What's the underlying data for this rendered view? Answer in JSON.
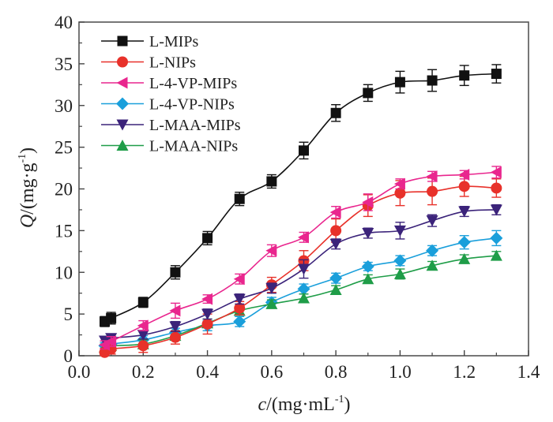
{
  "chart_data": {
    "type": "line",
    "title": "",
    "xlabel_italic": "c",
    "xlabel_rest": "/(mg·mL",
    "xlabel_sup": "-1",
    "xlabel_close": ")",
    "ylabel_italic": "Q",
    "ylabel_rest": "/(mg·g",
    "ylabel_sup": "-1",
    "ylabel_close": ")",
    "xlim": [
      0.0,
      1.4
    ],
    "ylim": [
      0,
      40
    ],
    "xticks": [
      "0.0",
      "0.2",
      "0.4",
      "0.6",
      "0.8",
      "1.0",
      "1.2",
      "1.4"
    ],
    "xtick_values": [
      0.0,
      0.2,
      0.4,
      0.6,
      0.8,
      1.0,
      1.2,
      1.4
    ],
    "yticks": [
      "0",
      "5",
      "10",
      "15",
      "20",
      "25",
      "30",
      "35",
      "40"
    ],
    "ytick_values": [
      0,
      5,
      10,
      15,
      20,
      25,
      30,
      35,
      40
    ],
    "grid": false,
    "legend_position": "top-left",
    "x": [
      0.08,
      0.1,
      0.2,
      0.3,
      0.4,
      0.5,
      0.6,
      0.7,
      0.8,
      0.9,
      1.0,
      1.1,
      1.2,
      1.3
    ],
    "series": [
      {
        "name": "L-MIPs",
        "color": "#111111",
        "marker": "square",
        "values": [
          4.1,
          4.5,
          6.4,
          10.0,
          14.1,
          18.8,
          20.9,
          24.6,
          29.1,
          31.5,
          32.8,
          33.0,
          33.6,
          33.8
        ],
        "errors": [
          0.6,
          0.7,
          0.6,
          0.8,
          0.8,
          0.8,
          0.8,
          1.0,
          1.0,
          1.0,
          1.3,
          1.3,
          1.2,
          1.1
        ]
      },
      {
        "name": "L-NIPs",
        "color": "#e8312a",
        "marker": "circle",
        "values": [
          0.4,
          0.8,
          1.2,
          2.2,
          3.8,
          5.7,
          8.5,
          11.4,
          15.0,
          18.0,
          19.5,
          19.7,
          20.3,
          20.1
        ],
        "errors": [
          0.5,
          0.6,
          0.8,
          0.8,
          1.2,
          0.8,
          0.9,
          1.2,
          1.4,
          1.3,
          1.5,
          1.6,
          1.2,
          1.1
        ]
      },
      {
        "name": "L-4-VP-MIPs",
        "color": "#e9268e",
        "marker": "triangle-left",
        "values": [
          1.3,
          1.7,
          3.6,
          5.4,
          6.8,
          9.2,
          12.6,
          14.2,
          17.2,
          18.4,
          20.6,
          21.5,
          21.7,
          22.0
        ],
        "errors": [
          0.5,
          0.6,
          0.6,
          0.9,
          0.5,
          0.6,
          0.7,
          0.6,
          0.7,
          1.0,
          0.6,
          0.6,
          0.5,
          0.7
        ]
      },
      {
        "name": "L-4-VP-NIPs",
        "color": "#1a9fdb",
        "marker": "diamond",
        "values": [
          1.2,
          1.4,
          1.9,
          2.8,
          3.6,
          4.1,
          6.4,
          8.0,
          9.3,
          10.7,
          11.4,
          12.6,
          13.6,
          14.1
        ],
        "errors": [
          0.4,
          0.4,
          0.5,
          0.5,
          0.6,
          0.6,
          0.6,
          0.6,
          0.6,
          0.5,
          0.6,
          0.6,
          0.8,
          0.9
        ]
      },
      {
        "name": "L-MAA-MIPs",
        "color": "#3b237a",
        "marker": "triangle-down",
        "values": [
          1.8,
          2.1,
          2.5,
          3.5,
          5.0,
          6.8,
          8.1,
          10.4,
          13.4,
          14.7,
          15.0,
          16.2,
          17.3,
          17.5
        ],
        "errors": [
          0.5,
          0.5,
          0.5,
          0.6,
          0.6,
          0.6,
          0.6,
          1.1,
          0.6,
          0.6,
          1.0,
          0.7,
          0.6,
          0.6
        ]
      },
      {
        "name": "L-MAA-NIPs",
        "color": "#1f9d48",
        "marker": "triangle-up",
        "values": [
          1.0,
          1.2,
          1.4,
          2.4,
          3.9,
          5.4,
          6.2,
          6.9,
          7.9,
          9.2,
          9.8,
          10.8,
          11.6,
          12.0
        ],
        "errors": [
          0.4,
          0.4,
          0.5,
          0.5,
          0.5,
          0.5,
          0.5,
          0.5,
          0.5,
          0.5,
          0.6,
          0.5,
          0.5,
          0.5
        ]
      }
    ]
  }
}
